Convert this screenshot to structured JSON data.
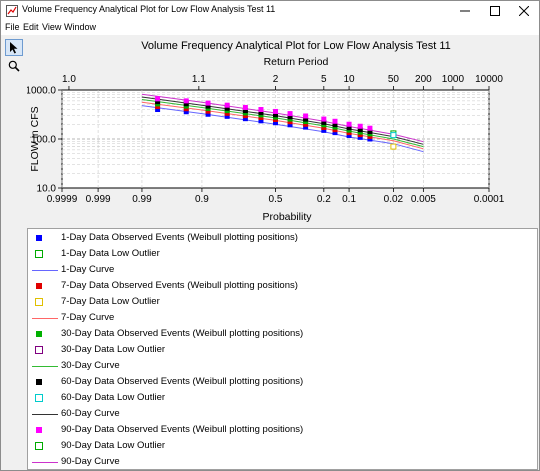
{
  "window": {
    "title": "Volume Frequency Analytical Plot for Low Flow Analysis Test 11"
  },
  "menu": [
    "File",
    "Edit",
    "View",
    "Window"
  ],
  "tools": [
    {
      "name": "pointer-icon"
    },
    {
      "name": "zoom-icon"
    }
  ],
  "chart_data": {
    "type": "scatter",
    "title": "Volume Frequency Analytical Plot for Low Flow Analysis Test 11",
    "top_axis_label": "Return Period",
    "top_ticks": [
      "1.0",
      "1.1",
      "2",
      "5",
      "10",
      "50",
      "200",
      "1000",
      "10000"
    ],
    "xlabel": "Probability",
    "x_ticks": [
      "0.9999",
      "0.999",
      "0.99",
      "0.9",
      "0.5",
      "0.2",
      "0.1",
      "0.02",
      "0.005",
      "0.0001"
    ],
    "ylabel": "FLOW in CFS",
    "y_scale": "log",
    "ylim": [
      10,
      1000
    ],
    "y_ticks": [
      "10.0",
      "100.0",
      "1000.0"
    ],
    "grid": true,
    "series": [
      {
        "name": "1-Day Data Observed Events (Weibull plotting positions)",
        "color": "#0000ff",
        "kind": "observed"
      },
      {
        "name": "1-Day Data Low Outlier",
        "color": "#00aa00",
        "kind": "outlier"
      },
      {
        "name": "1-Day Curve",
        "color": "#6666ff",
        "kind": "curve"
      },
      {
        "name": "7-Day Data Observed Events (Weibull plotting positions)",
        "color": "#e00000",
        "kind": "observed"
      },
      {
        "name": "7-Day Data Low Outlier",
        "color": "#e0c000",
        "kind": "outlier"
      },
      {
        "name": "7-Day Curve",
        "color": "#ff6666",
        "kind": "curve"
      },
      {
        "name": "30-Day Data Observed Events (Weibull plotting positions)",
        "color": "#00b000",
        "kind": "observed"
      },
      {
        "name": "30-Day Data Low Outlier",
        "color": "#800080",
        "kind": "outlier"
      },
      {
        "name": "30-Day Curve",
        "color": "#33bb33",
        "kind": "curve"
      },
      {
        "name": "60-Day Data Observed Events (Weibull plotting positions)",
        "color": "#000000",
        "kind": "observed"
      },
      {
        "name": "60-Day Data Low Outlier",
        "color": "#00cccc",
        "kind": "outlier"
      },
      {
        "name": "60-Day Curve",
        "color": "#333333",
        "kind": "curve"
      },
      {
        "name": "90-Day Data Observed Events (Weibull plotting positions)",
        "color": "#ff00ff",
        "kind": "observed"
      },
      {
        "name": "90-Day Data Low Outlier",
        "color": "#00aa00",
        "kind": "outlier"
      },
      {
        "name": "90-Day Curve",
        "color": "#cc33cc",
        "kind": "curve"
      }
    ],
    "curves": [
      {
        "color": "#6666ff",
        "x": [
          0.99,
          0.9,
          0.5,
          0.2,
          0.1,
          0.02,
          0.005
        ],
        "y": [
          480,
          330,
          200,
          140,
          110,
          80,
          55
        ]
      },
      {
        "color": "#ff6666",
        "x": [
          0.99,
          0.9,
          0.5,
          0.2,
          0.1,
          0.02,
          0.005
        ],
        "y": [
          560,
          390,
          240,
          165,
          130,
          92,
          63
        ]
      },
      {
        "color": "#33bb33",
        "x": [
          0.99,
          0.9,
          0.5,
          0.2,
          0.1,
          0.02,
          0.005
        ],
        "y": [
          640,
          440,
          270,
          185,
          145,
          100,
          70
        ]
      },
      {
        "color": "#333333",
        "x": [
          0.99,
          0.9,
          0.5,
          0.2,
          0.1,
          0.02,
          0.005
        ],
        "y": [
          720,
          490,
          300,
          205,
          160,
          112,
          78
        ]
      },
      {
        "color": "#cc33cc",
        "x": [
          0.99,
          0.9,
          0.5,
          0.2,
          0.1,
          0.02,
          0.005
        ],
        "y": [
          820,
          560,
          340,
          230,
          180,
          125,
          88
        ]
      }
    ],
    "observed": [
      {
        "color": "#0000ff",
        "x": [
          0.98,
          0.94,
          0.88,
          0.8,
          0.7,
          0.6,
          0.5,
          0.4,
          0.3,
          0.2,
          0.15,
          0.1,
          0.07,
          0.05
        ],
        "y": [
          400,
          360,
          320,
          290,
          260,
          235,
          215,
          195,
          175,
          150,
          135,
          118,
          108,
          100
        ]
      },
      {
        "color": "#e00000",
        "x": [
          0.98,
          0.94,
          0.88,
          0.8,
          0.7,
          0.6,
          0.5,
          0.4,
          0.3,
          0.2,
          0.15,
          0.1,
          0.07,
          0.05
        ],
        "y": [
          460,
          415,
          370,
          335,
          300,
          275,
          250,
          225,
          200,
          172,
          155,
          135,
          123,
          113
        ]
      },
      {
        "color": "#00b000",
        "x": [
          0.98,
          0.94,
          0.88,
          0.8,
          0.7,
          0.6,
          0.5,
          0.4,
          0.3,
          0.2,
          0.15,
          0.1,
          0.07,
          0.05
        ],
        "y": [
          520,
          470,
          420,
          380,
          340,
          310,
          280,
          255,
          228,
          195,
          175,
          152,
          138,
          127
        ]
      },
      {
        "color": "#000000",
        "x": [
          0.98,
          0.94,
          0.88,
          0.8,
          0.7,
          0.6,
          0.5,
          0.4,
          0.3,
          0.2,
          0.15,
          0.1,
          0.07,
          0.05
        ],
        "y": [
          580,
          525,
          470,
          425,
          380,
          345,
          312,
          285,
          255,
          218,
          196,
          170,
          155,
          142
        ]
      },
      {
        "color": "#ff00ff",
        "x": [
          0.98,
          0.94,
          0.88,
          0.8,
          0.7,
          0.6,
          0.5,
          0.4,
          0.3,
          0.2,
          0.15,
          0.1,
          0.07,
          0.05
        ],
        "y": [
          660,
          600,
          540,
          490,
          440,
          400,
          365,
          330,
          295,
          255,
          230,
          200,
          182,
          166
        ]
      }
    ],
    "outliers": [
      {
        "color": "#00aa00",
        "x": [
          0.02
        ],
        "y": [
          130
        ]
      },
      {
        "color": "#e0c000",
        "x": [
          0.02
        ],
        "y": [
          70
        ]
      },
      {
        "color": "#00cccc",
        "x": [
          0.02
        ],
        "y": [
          120
        ]
      }
    ]
  }
}
